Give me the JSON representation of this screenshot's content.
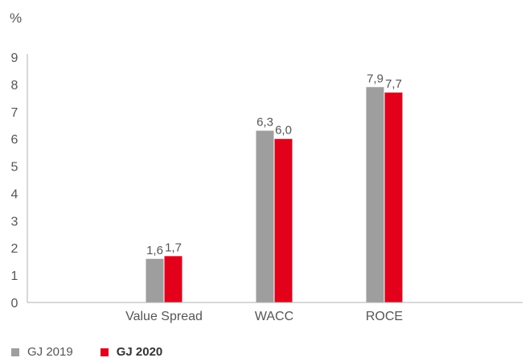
{
  "chart_data": {
    "type": "bar",
    "unit_label": "%",
    "categories": [
      "Value Spread",
      "WACC",
      "ROCE"
    ],
    "series": [
      {
        "name": "GJ 2019",
        "values": [
          1.6,
          6.3,
          7.9
        ],
        "labels": [
          "1,6",
          "6,3",
          "7,9"
        ],
        "color": "#9e9e9e"
      },
      {
        "name": "GJ 2020",
        "values": [
          1.7,
          6.0,
          7.7
        ],
        "labels": [
          "1,7",
          "6,0",
          "7,7"
        ],
        "color": "#e2001a"
      }
    ],
    "yticks": [
      "0",
      "1",
      "2",
      "3",
      "4",
      "5",
      "6",
      "7",
      "8",
      "9"
    ],
    "ylim": [
      0,
      9
    ],
    "grid": false,
    "legend_position": "bottom-left"
  }
}
